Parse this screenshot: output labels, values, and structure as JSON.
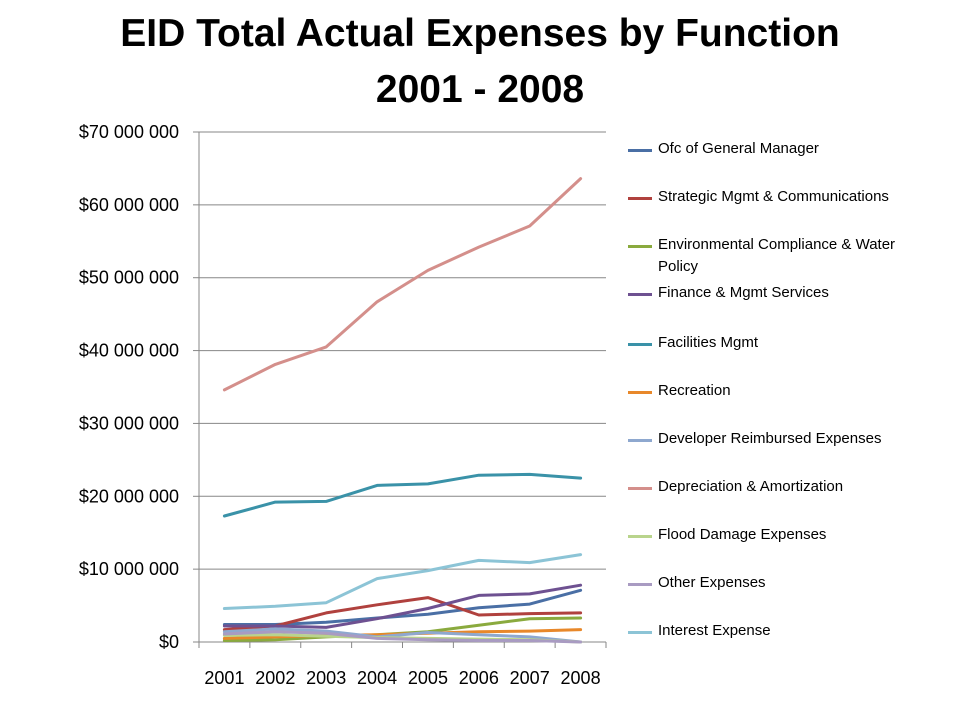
{
  "chart_data": {
    "type": "line",
    "title_line1": "EID Total Actual Expenses by Function",
    "title_line2": "2001 - 2008",
    "xlabel": "",
    "ylabel": "",
    "x": [
      "2001",
      "2002",
      "2003",
      "2004",
      "2005",
      "2006",
      "2007",
      "2008"
    ],
    "ylim": [
      0,
      70000000
    ],
    "yticks": [
      0,
      10000000,
      20000000,
      30000000,
      40000000,
      50000000,
      60000000,
      70000000
    ],
    "ytick_labels": [
      "$0",
      "$10 000 000",
      "$20 000 000",
      "$30 000 000",
      "$40 000 000",
      "$50 000 000",
      "$60 000 000",
      "$70 000 000"
    ],
    "grid": "horizontal",
    "legend_position": "right",
    "series": [
      {
        "name": "Ofc of General Manager",
        "color": "#4a6fa5",
        "values": [
          2400000,
          2400000,
          2700000,
          3300000,
          3800000,
          4700000,
          5200000,
          7100000
        ]
      },
      {
        "name": "Strategic Mgmt & Communications",
        "color": "#b0413e",
        "values": [
          1700000,
          2200000,
          4000000,
          5100000,
          6100000,
          3700000,
          3900000,
          4000000
        ]
      },
      {
        "name": "Environmental Compliance & Water Policy",
        "color": "#8aaa3e",
        "values": [
          200000,
          300000,
          700000,
          1000000,
          1400000,
          2300000,
          3200000,
          3300000
        ]
      },
      {
        "name": "Finance & Mgmt Services",
        "color": "#6e5191",
        "values": [
          2200000,
          2200000,
          2000000,
          3200000,
          4600000,
          6400000,
          6600000,
          7800000
        ]
      },
      {
        "name": "Facilities Mgmt",
        "color": "#3a92a8",
        "values": [
          17300000,
          19200000,
          19300000,
          21500000,
          21700000,
          22900000,
          23000000,
          22500000
        ]
      },
      {
        "name": "Recreation",
        "color": "#e8882a",
        "values": [
          500000,
          700000,
          900000,
          1000000,
          1200000,
          1400000,
          1500000,
          1700000
        ]
      },
      {
        "name": "Developer Reimbursed Expenses",
        "color": "#8ea8cf",
        "values": [
          1400000,
          1800000,
          1500000,
          700000,
          1300000,
          1000000,
          700000,
          0
        ]
      },
      {
        "name": "Depreciation  & Amortization",
        "color": "#d48f8b",
        "values": [
          34600000,
          38100000,
          40500000,
          46700000,
          51000000,
          54200000,
          57100000,
          63600000
        ]
      },
      {
        "name": "Flood Damage Expenses",
        "color": "#b9d48c",
        "values": [
          900000,
          1000000,
          800000,
          600000,
          500000,
          400000,
          300000,
          0
        ]
      },
      {
        "name": "Other Expenses",
        "color": "#a99bc2",
        "values": [
          1100000,
          1400000,
          1200000,
          500000,
          300000,
          200000,
          200000,
          0
        ]
      },
      {
        "name": "Interest Expense",
        "color": "#8cc4d6",
        "values": [
          4600000,
          4900000,
          5400000,
          8700000,
          9800000,
          11200000,
          10900000,
          12000000
        ]
      }
    ]
  }
}
